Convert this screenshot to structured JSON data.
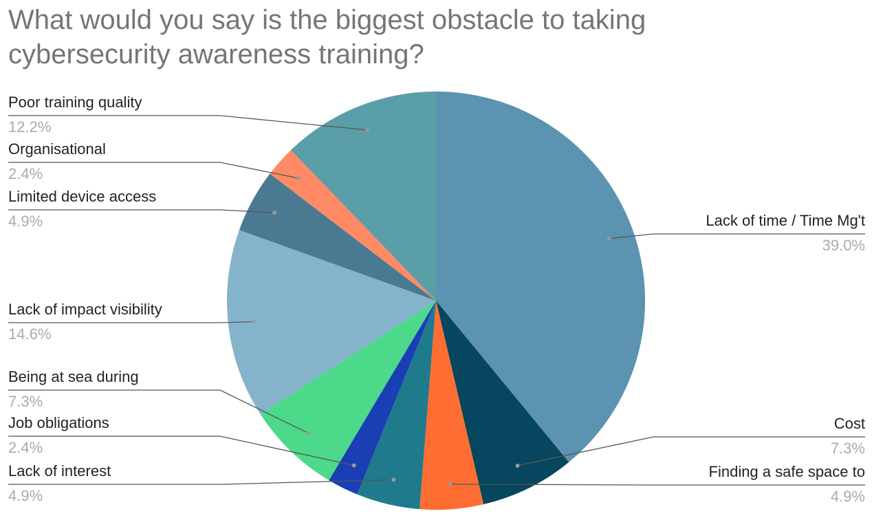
{
  "chart_data": {
    "type": "pie",
    "title": "What would you say is the biggest obstacle to taking cybersecurity awareness training?",
    "categories": [
      "Lack of time / Time Mg't",
      "Cost",
      "Finding a safe space to",
      "Lack of interest",
      "Job obligations",
      "Being at sea during",
      "Lack of impact visibility",
      "Limited device access",
      "Organisational",
      "Poor training quality"
    ],
    "values": [
      39.0,
      7.3,
      4.9,
      4.9,
      2.4,
      7.3,
      14.6,
      4.9,
      2.4,
      12.2
    ],
    "value_labels": [
      "39.0%",
      "7.3%",
      "4.9%",
      "4.9%",
      "2.4%",
      "7.3%",
      "14.6%",
      "4.9%",
      "2.4%",
      "12.2%"
    ],
    "colors": [
      "#5b93b0",
      "#06465e",
      "#ff6d33",
      "#1f7a8c",
      "#1a3fb5",
      "#4cd98a",
      "#85b3cc",
      "#4a7a91",
      "#ff8a65",
      "#5a9ea8"
    ]
  }
}
